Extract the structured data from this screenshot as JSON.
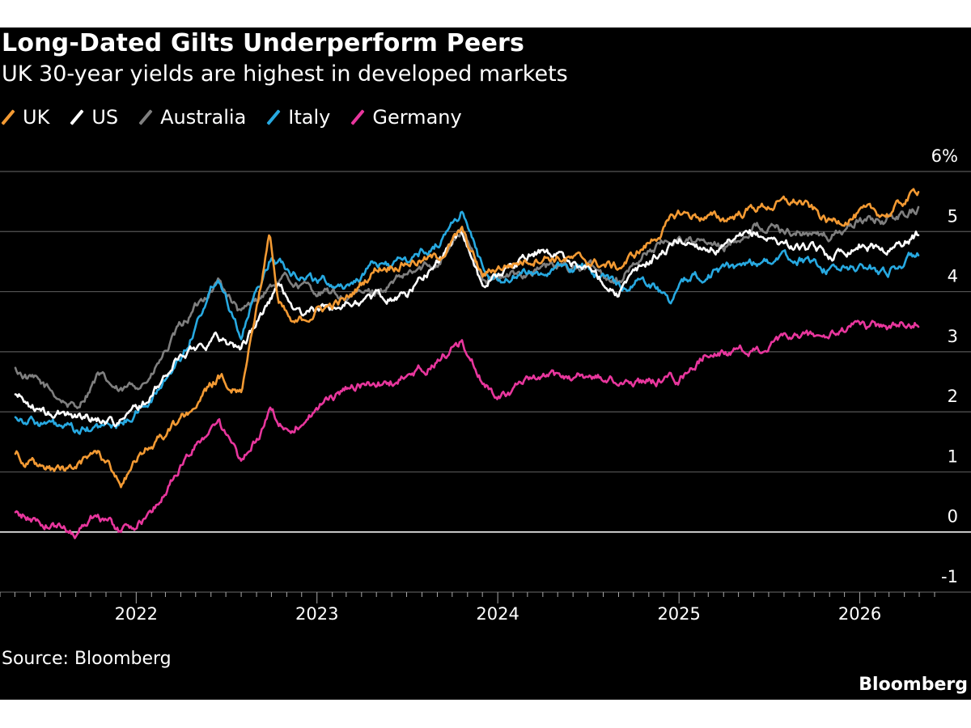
{
  "header": {
    "title": "Long-Dated Gilts Underperform Peers",
    "subtitle": "UK 30-year yields are highest in developed markets"
  },
  "footer": {
    "source": "Source: Bloomberg",
    "brand": "Bloomberg"
  },
  "chart_data": {
    "type": "line",
    "title": "Long-Dated Gilts Underperform Peers",
    "subtitle": "UK 30-year yields are highest in developed markets",
    "xlabel": "",
    "ylabel": "",
    "ylim": [
      -1,
      6
    ],
    "xlim": [
      "2021-04",
      "2026-06"
    ],
    "grid": true,
    "legend": "top-left",
    "x_ticks": [
      "2022",
      "2023",
      "2024",
      "2025",
      "2026"
    ],
    "y_ticks": [
      {
        "value": 6,
        "label": "6%"
      },
      {
        "value": 5,
        "label": "5"
      },
      {
        "value": 4,
        "label": "4"
      },
      {
        "value": 3,
        "label": "3"
      },
      {
        "value": 2,
        "label": "2"
      },
      {
        "value": 1,
        "label": "1"
      },
      {
        "value": 0,
        "label": "0"
      },
      {
        "value": -1,
        "label": "-1"
      }
    ],
    "series": [
      {
        "name": "Australia",
        "color": "#7f7f7f",
        "points": [
          [
            "2021-05-01",
            2.7
          ],
          [
            "2021-07-01",
            2.4
          ],
          [
            "2021-09-01",
            2.05
          ],
          [
            "2021-10-15",
            2.6
          ],
          [
            "2021-12-01",
            2.3
          ],
          [
            "2022-02-01",
            2.6
          ],
          [
            "2022-04-01",
            3.4
          ],
          [
            "2022-06-15",
            4.2
          ],
          [
            "2022-08-01",
            3.6
          ],
          [
            "2022-10-01",
            4.1
          ],
          [
            "2022-11-01",
            4.2
          ],
          [
            "2023-01-01",
            4.0
          ],
          [
            "2023-03-01",
            3.9
          ],
          [
            "2023-05-01",
            4.0
          ],
          [
            "2023-07-01",
            4.25
          ],
          [
            "2023-09-01",
            4.5
          ],
          [
            "2023-10-20",
            5.0
          ],
          [
            "2023-12-01",
            4.3
          ],
          [
            "2024-01-01",
            4.2
          ],
          [
            "2024-04-01",
            4.4
          ],
          [
            "2024-07-01",
            4.4
          ],
          [
            "2024-09-01",
            4.2
          ],
          [
            "2024-11-01",
            4.7
          ],
          [
            "2025-01-01",
            4.9
          ],
          [
            "2025-04-01",
            4.7
          ],
          [
            "2025-06-01",
            5.1
          ],
          [
            "2025-09-01",
            5.0
          ],
          [
            "2025-11-01",
            4.9
          ],
          [
            "2026-01-01",
            5.2
          ],
          [
            "2026-03-01",
            5.2
          ],
          [
            "2026-05-01",
            5.4
          ]
        ]
      },
      {
        "name": "Italy",
        "color": "#27a9e1",
        "points": [
          [
            "2021-05-01",
            1.95
          ],
          [
            "2021-07-01",
            1.8
          ],
          [
            "2021-09-01",
            1.65
          ],
          [
            "2021-12-01",
            1.8
          ],
          [
            "2022-02-01",
            2.2
          ],
          [
            "2022-04-01",
            2.9
          ],
          [
            "2022-06-15",
            4.3
          ],
          [
            "2022-08-01",
            3.3
          ],
          [
            "2022-10-01",
            4.6
          ],
          [
            "2022-11-01",
            4.4
          ],
          [
            "2023-01-01",
            4.2
          ],
          [
            "2023-03-01",
            4.1
          ],
          [
            "2023-05-01",
            4.45
          ],
          [
            "2023-07-01",
            4.5
          ],
          [
            "2023-09-01",
            4.8
          ],
          [
            "2023-10-20",
            5.35
          ],
          [
            "2023-12-01",
            4.4
          ],
          [
            "2024-01-01",
            4.2
          ],
          [
            "2024-04-01",
            4.35
          ],
          [
            "2024-07-01",
            4.4
          ],
          [
            "2024-09-01",
            4.1
          ],
          [
            "2024-11-01",
            4.2
          ],
          [
            "2024-12-15",
            3.85
          ],
          [
            "2025-02-01",
            4.3
          ],
          [
            "2025-04-01",
            4.35
          ],
          [
            "2025-06-01",
            4.5
          ],
          [
            "2025-09-01",
            4.55
          ],
          [
            "2025-11-01",
            4.35
          ],
          [
            "2026-01-01",
            4.4
          ],
          [
            "2026-03-01",
            4.35
          ],
          [
            "2026-05-01",
            4.65
          ]
        ]
      },
      {
        "name": "US",
        "color": "#ffffff",
        "points": [
          [
            "2021-05-01",
            2.3
          ],
          [
            "2021-07-01",
            1.95
          ],
          [
            "2021-09-01",
            1.95
          ],
          [
            "2021-12-01",
            1.85
          ],
          [
            "2022-02-01",
            2.25
          ],
          [
            "2022-04-01",
            2.95
          ],
          [
            "2022-06-15",
            3.25
          ],
          [
            "2022-08-01",
            3.05
          ],
          [
            "2022-10-15",
            4.1
          ],
          [
            "2022-12-01",
            3.6
          ],
          [
            "2023-01-01",
            3.7
          ],
          [
            "2023-03-01",
            3.8
          ],
          [
            "2023-05-01",
            3.9
          ],
          [
            "2023-07-01",
            3.95
          ],
          [
            "2023-09-01",
            4.5
          ],
          [
            "2023-10-20",
            5.05
          ],
          [
            "2023-12-01",
            4.1
          ],
          [
            "2024-01-01",
            4.3
          ],
          [
            "2024-04-01",
            4.7
          ],
          [
            "2024-07-01",
            4.4
          ],
          [
            "2024-09-01",
            4.0
          ],
          [
            "2024-11-01",
            4.5
          ],
          [
            "2025-01-01",
            4.85
          ],
          [
            "2025-04-01",
            4.7
          ],
          [
            "2025-06-01",
            4.95
          ],
          [
            "2025-09-01",
            4.75
          ],
          [
            "2025-11-01",
            4.6
          ],
          [
            "2026-01-01",
            4.8
          ],
          [
            "2026-03-01",
            4.7
          ],
          [
            "2026-05-01",
            4.95
          ]
        ]
      },
      {
        "name": "Germany",
        "color": "#e8369d",
        "points": [
          [
            "2021-05-01",
            0.3
          ],
          [
            "2021-07-01",
            0.15
          ],
          [
            "2021-09-01",
            0.0
          ],
          [
            "2021-10-15",
            0.35
          ],
          [
            "2021-12-01",
            0.0
          ],
          [
            "2022-02-01",
            0.3
          ],
          [
            "2022-04-01",
            1.1
          ],
          [
            "2022-06-15",
            1.9
          ],
          [
            "2022-08-01",
            1.1
          ],
          [
            "2022-10-01",
            2.0
          ],
          [
            "2022-11-01",
            1.7
          ],
          [
            "2023-01-01",
            2.05
          ],
          [
            "2023-03-01",
            2.4
          ],
          [
            "2023-05-01",
            2.45
          ],
          [
            "2023-07-01",
            2.55
          ],
          [
            "2023-09-01",
            2.85
          ],
          [
            "2023-10-20",
            3.15
          ],
          [
            "2023-12-01",
            2.5
          ],
          [
            "2024-01-01",
            2.3
          ],
          [
            "2024-04-01",
            2.55
          ],
          [
            "2024-07-01",
            2.6
          ],
          [
            "2024-09-01",
            2.5
          ],
          [
            "2024-11-01",
            2.5
          ],
          [
            "2025-01-01",
            2.55
          ],
          [
            "2025-03-01",
            3.0
          ],
          [
            "2025-06-01",
            3.0
          ],
          [
            "2025-09-01",
            3.25
          ],
          [
            "2025-11-01",
            3.25
          ],
          [
            "2026-01-01",
            3.45
          ],
          [
            "2026-03-01",
            3.4
          ],
          [
            "2026-05-01",
            3.55
          ]
        ]
      },
      {
        "name": "UK",
        "color": "#f39a33",
        "points": [
          [
            "2021-05-01",
            1.35
          ],
          [
            "2021-07-01",
            1.0
          ],
          [
            "2021-09-01",
            1.05
          ],
          [
            "2021-10-15",
            1.35
          ],
          [
            "2021-12-01",
            0.85
          ],
          [
            "2022-02-01",
            1.45
          ],
          [
            "2022-04-01",
            1.85
          ],
          [
            "2022-06-15",
            2.55
          ],
          [
            "2022-08-01",
            2.4
          ],
          [
            "2022-09-28",
            4.95
          ],
          [
            "2022-10-15",
            3.8
          ],
          [
            "2022-11-15",
            3.4
          ],
          [
            "2023-01-01",
            3.7
          ],
          [
            "2023-03-01",
            3.85
          ],
          [
            "2023-05-01",
            4.4
          ],
          [
            "2023-07-01",
            4.5
          ],
          [
            "2023-09-01",
            4.55
          ],
          [
            "2023-10-20",
            5.0
          ],
          [
            "2023-12-01",
            4.25
          ],
          [
            "2024-01-01",
            4.4
          ],
          [
            "2024-04-01",
            4.6
          ],
          [
            "2024-07-01",
            4.5
          ],
          [
            "2024-09-01",
            4.4
          ],
          [
            "2024-11-01",
            4.8
          ],
          [
            "2025-01-01",
            5.3
          ],
          [
            "2025-04-01",
            5.2
          ],
          [
            "2025-06-01",
            5.4
          ],
          [
            "2025-09-01",
            5.5
          ],
          [
            "2025-11-01",
            5.15
          ],
          [
            "2026-01-01",
            5.3
          ],
          [
            "2026-03-01",
            5.3
          ],
          [
            "2026-05-01",
            5.7
          ]
        ]
      }
    ]
  }
}
